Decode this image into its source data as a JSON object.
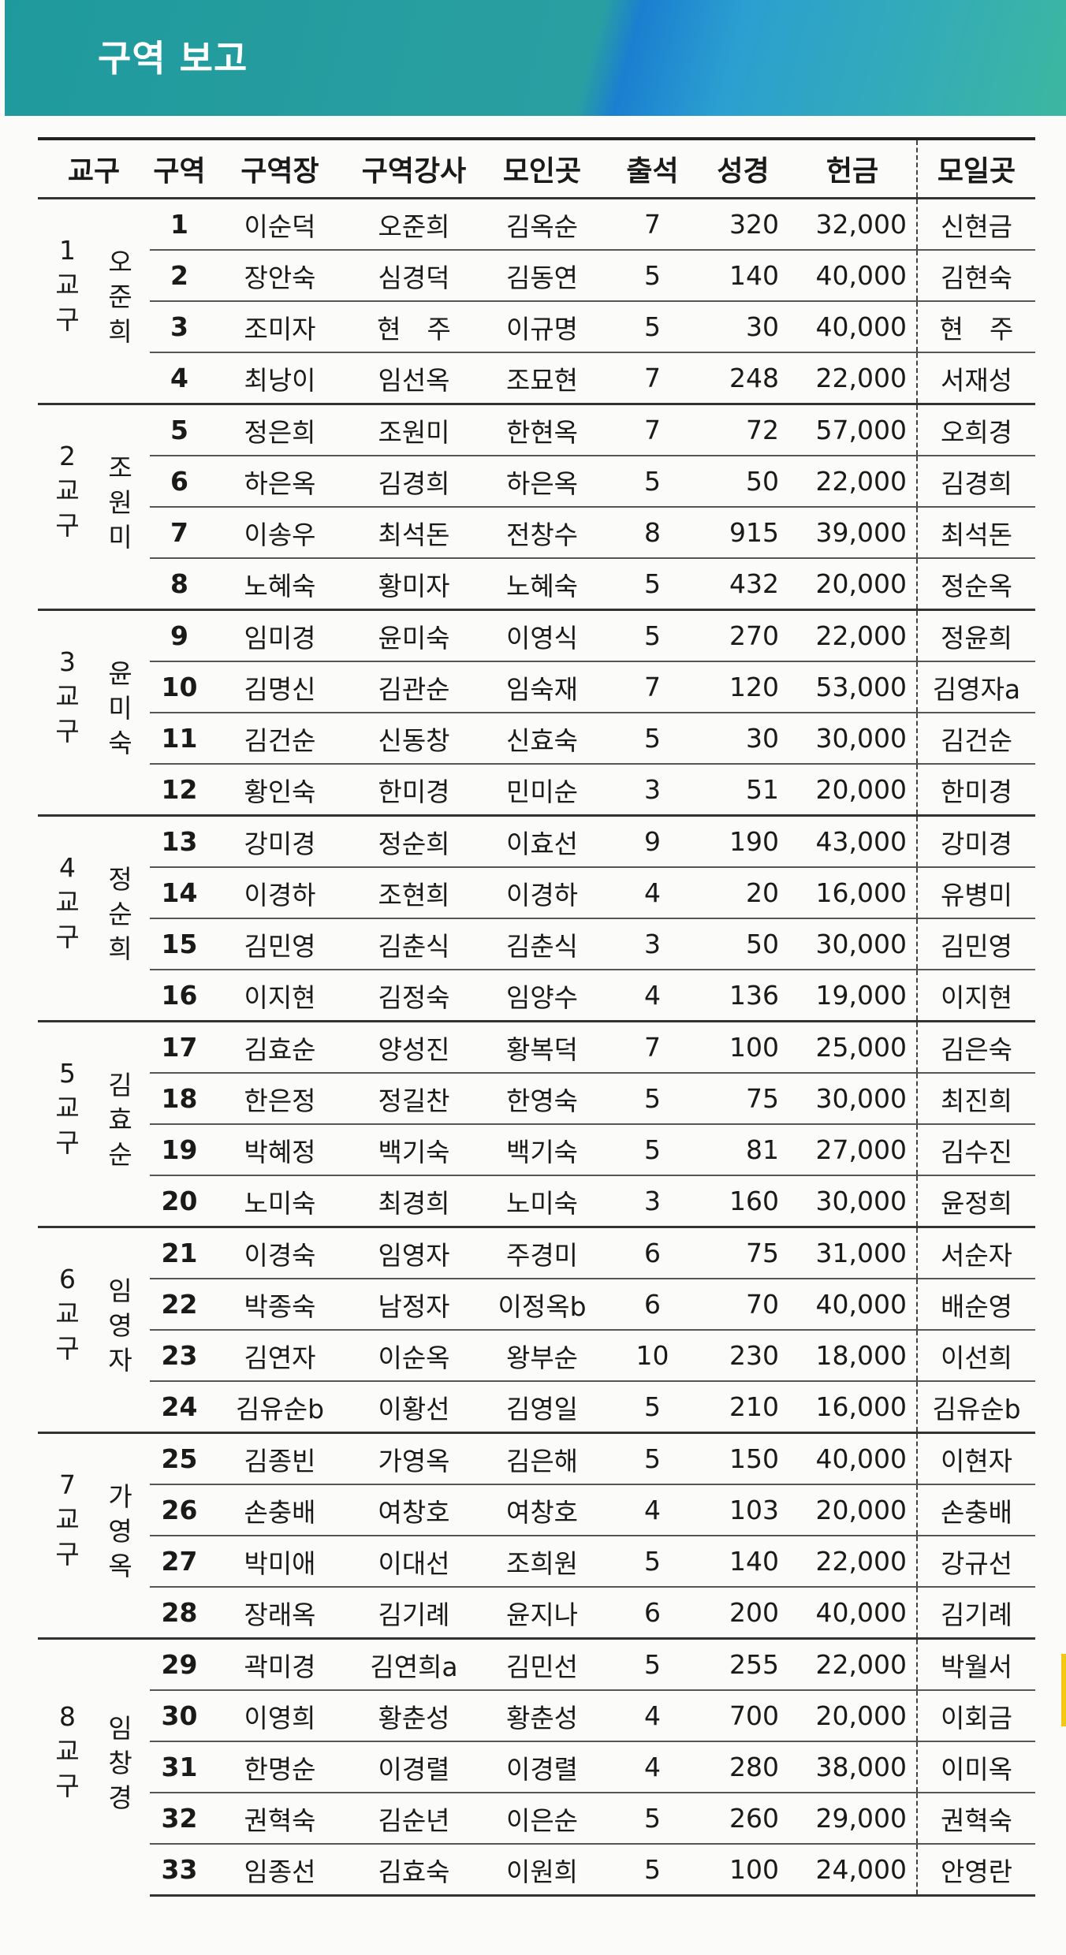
{
  "title": "구역 보고",
  "colors": {
    "banner_teal": "#1f9a9c",
    "banner_blue": "#1b7fd0",
    "accent_yellow": "#f4c812"
  },
  "headers": [
    "교구",
    "구역",
    "구역장",
    "구역강사",
    "모인곳",
    "출석",
    "성경",
    "헌금",
    "모일곳"
  ],
  "groups": [
    {
      "num": "1",
      "label": [
        "교",
        "구"
      ],
      "name": [
        "오",
        "준",
        "희"
      ],
      "rows": [
        [
          "1",
          "이순덕",
          "오준희",
          "김옥순",
          "7",
          "320",
          "32,000",
          "신현금"
        ],
        [
          "2",
          "장안숙",
          "심경덕",
          "김동연",
          "5",
          "140",
          "40,000",
          "김현숙"
        ],
        [
          "3",
          "조미자",
          "현　주",
          "이규명",
          "5",
          "30",
          "40,000",
          "현　주"
        ],
        [
          "4",
          "최낭이",
          "임선옥",
          "조묘현",
          "7",
          "248",
          "22,000",
          "서재성"
        ]
      ]
    },
    {
      "num": "2",
      "label": [
        "교",
        "구"
      ],
      "name": [
        "조",
        "원",
        "미"
      ],
      "rows": [
        [
          "5",
          "정은희",
          "조원미",
          "한현옥",
          "7",
          "72",
          "57,000",
          "오희경"
        ],
        [
          "6",
          "하은옥",
          "김경희",
          "하은옥",
          "5",
          "50",
          "22,000",
          "김경희"
        ],
        [
          "7",
          "이송우",
          "최석돈",
          "전창수",
          "8",
          "915",
          "39,000",
          "최석돈"
        ],
        [
          "8",
          "노혜숙",
          "황미자",
          "노혜숙",
          "5",
          "432",
          "20,000",
          "정순옥"
        ]
      ]
    },
    {
      "num": "3",
      "label": [
        "교",
        "구"
      ],
      "name": [
        "윤",
        "미",
        "숙"
      ],
      "rows": [
        [
          "9",
          "임미경",
          "윤미숙",
          "이영식",
          "5",
          "270",
          "22,000",
          "정윤희"
        ],
        [
          "10",
          "김명신",
          "김관순",
          "임숙재",
          "7",
          "120",
          "53,000",
          "김영자a"
        ],
        [
          "11",
          "김건순",
          "신동창",
          "신효숙",
          "5",
          "30",
          "30,000",
          "김건순"
        ],
        [
          "12",
          "황인숙",
          "한미경",
          "민미순",
          "3",
          "51",
          "20,000",
          "한미경"
        ]
      ]
    },
    {
      "num": "4",
      "label": [
        "교",
        "구"
      ],
      "name": [
        "정",
        "순",
        "희"
      ],
      "rows": [
        [
          "13",
          "강미경",
          "정순희",
          "이효선",
          "9",
          "190",
          "43,000",
          "강미경"
        ],
        [
          "14",
          "이경하",
          "조현희",
          "이경하",
          "4",
          "20",
          "16,000",
          "유병미"
        ],
        [
          "15",
          "김민영",
          "김춘식",
          "김춘식",
          "3",
          "50",
          "30,000",
          "김민영"
        ],
        [
          "16",
          "이지현",
          "김정숙",
          "임양수",
          "4",
          "136",
          "19,000",
          "이지현"
        ]
      ]
    },
    {
      "num": "5",
      "label": [
        "교",
        "구"
      ],
      "name": [
        "김",
        "효",
        "순"
      ],
      "rows": [
        [
          "17",
          "김효순",
          "양성진",
          "황복덕",
          "7",
          "100",
          "25,000",
          "김은숙"
        ],
        [
          "18",
          "한은정",
          "정길찬",
          "한영숙",
          "5",
          "75",
          "30,000",
          "최진희"
        ],
        [
          "19",
          "박혜정",
          "백기숙",
          "백기숙",
          "5",
          "81",
          "27,000",
          "김수진"
        ],
        [
          "20",
          "노미숙",
          "최경희",
          "노미숙",
          "3",
          "160",
          "30,000",
          "윤정희"
        ]
      ]
    },
    {
      "num": "6",
      "label": [
        "교",
        "구"
      ],
      "name": [
        "임",
        "영",
        "자"
      ],
      "rows": [
        [
          "21",
          "이경숙",
          "임영자",
          "주경미",
          "6",
          "75",
          "31,000",
          "서순자"
        ],
        [
          "22",
          "박종숙",
          "남정자",
          "이정옥b",
          "6",
          "70",
          "40,000",
          "배순영"
        ],
        [
          "23",
          "김연자",
          "이순옥",
          "왕부순",
          "10",
          "230",
          "18,000",
          "이선희"
        ],
        [
          "24",
          "김유순b",
          "이황선",
          "김영일",
          "5",
          "210",
          "16,000",
          "김유순b"
        ]
      ]
    },
    {
      "num": "7",
      "label": [
        "교",
        "구"
      ],
      "name": [
        "가",
        "영",
        "옥"
      ],
      "rows": [
        [
          "25",
          "김종빈",
          "가영옥",
          "김은해",
          "5",
          "150",
          "40,000",
          "이현자"
        ],
        [
          "26",
          "손충배",
          "여창호",
          "여창호",
          "4",
          "103",
          "20,000",
          "손충배"
        ],
        [
          "27",
          "박미애",
          "이대선",
          "조희원",
          "5",
          "140",
          "22,000",
          "강규선"
        ],
        [
          "28",
          "장래옥",
          "김기례",
          "윤지나",
          "6",
          "200",
          "40,000",
          "김기례"
        ]
      ]
    },
    {
      "num": "8",
      "label": [
        "교",
        "구"
      ],
      "name": [
        "임",
        "창",
        "경"
      ],
      "rows": [
        [
          "29",
          "곽미경",
          "김연희a",
          "김민선",
          "5",
          "255",
          "22,000",
          "박월서"
        ],
        [
          "30",
          "이영희",
          "황춘성",
          "황춘성",
          "4",
          "700",
          "20,000",
          "이회금"
        ],
        [
          "31",
          "한명순",
          "이경렬",
          "이경렬",
          "4",
          "280",
          "38,000",
          "이미옥"
        ],
        [
          "32",
          "권혁숙",
          "김순년",
          "이은순",
          "5",
          "260",
          "29,000",
          "권혁숙"
        ],
        [
          "33",
          "임종선",
          "김효숙",
          "이원희",
          "5",
          "100",
          "24,000",
          "안영란"
        ]
      ]
    }
  ]
}
